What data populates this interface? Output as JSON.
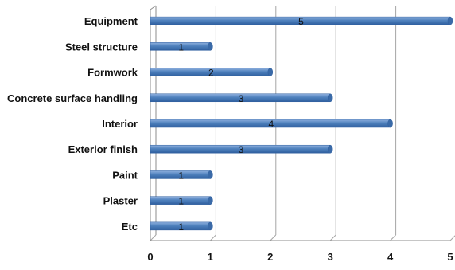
{
  "chart_data": {
    "type": "bar",
    "orientation": "horizontal",
    "categories": [
      "Equipment",
      "Steel structure",
      "Formwork",
      "Concrete surface handling",
      "Interior",
      "Exterior finish",
      "Paint",
      "Plaster",
      "Etc"
    ],
    "values": [
      5,
      1,
      2,
      3,
      4,
      3,
      1,
      1,
      1
    ],
    "xlim": [
      0,
      5
    ],
    "xticks": [
      "0",
      "1",
      "2",
      "3",
      "4",
      "5"
    ],
    "grid": "vertical",
    "legend": "none",
    "data_labels": true,
    "colors": {
      "bar_fill": "#4f81bd",
      "bar_light": "#8fb0de",
      "bar_dark": "#2f5f9f",
      "bar_end": "#3a6aa8",
      "gridline": "#a6a6a6",
      "axis": "#8c8c8c"
    }
  }
}
